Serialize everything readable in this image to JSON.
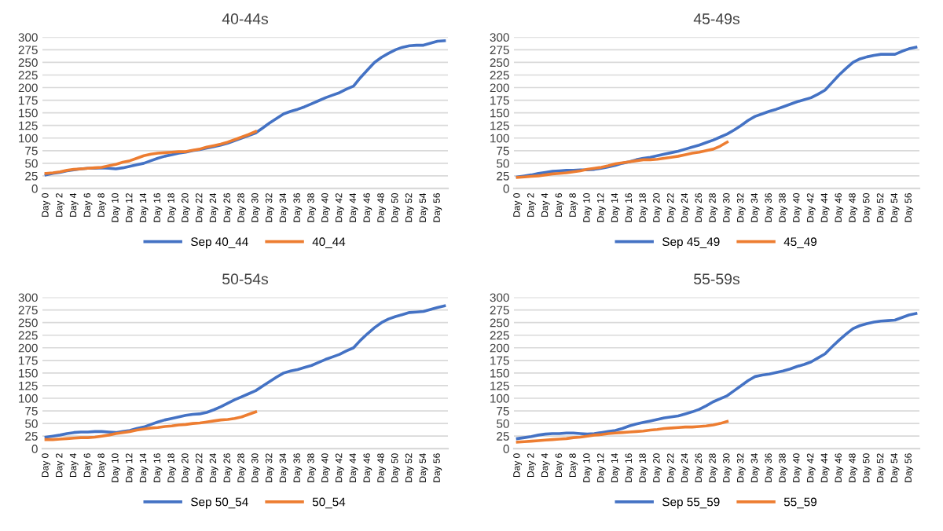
{
  "chart_data": [
    {
      "type": "line",
      "title": "40-44s",
      "categories": [
        "Day 0",
        null,
        "Day 2",
        null,
        "Day 4",
        null,
        "Day 6",
        null,
        "Day 8",
        null,
        "Day 10",
        null,
        "Day 12",
        null,
        "Day 14",
        null,
        "Day 16",
        null,
        "Day 18",
        null,
        "Day 20",
        null,
        "Day 22",
        null,
        "Day 24",
        null,
        "Day 26",
        null,
        "Day 28",
        null,
        "Day 30",
        null,
        "Day 32",
        null,
        "Day 34",
        null,
        "Day 36",
        null,
        "Day 38",
        null,
        "Day 40",
        null,
        "Day 42",
        null,
        "Day 44",
        null,
        "Day 46",
        null,
        "Day 48",
        null,
        "Day 50",
        null,
        "Day 52",
        null,
        "Day 54",
        null,
        "Day 56",
        null
      ],
      "series": [
        {
          "name": "Sep 40_44",
          "color": "#4472c4",
          "values": [
            27,
            30,
            32,
            35,
            37,
            39,
            40,
            40,
            41,
            40,
            39,
            41,
            44,
            47,
            50,
            55,
            60,
            64,
            67,
            70,
            72,
            75,
            77,
            80,
            83,
            86,
            90,
            95,
            100,
            105,
            110,
            120,
            130,
            139,
            148,
            153,
            157,
            162,
            168,
            174,
            180,
            185,
            190,
            197,
            203,
            220,
            235,
            250,
            260,
            268,
            275,
            280,
            283,
            284,
            284,
            288,
            292,
            293
          ]
        },
        {
          "name": "40_44",
          "color": "#ed7d31",
          "values": [
            30,
            31,
            33,
            36,
            38,
            39,
            40,
            41,
            42,
            45,
            48,
            52,
            55,
            60,
            65,
            68,
            70,
            71,
            72,
            73,
            73,
            76,
            78,
            82,
            85,
            88,
            92,
            97,
            102,
            107,
            113,
            null,
            null,
            null,
            null,
            null,
            null,
            null,
            null,
            null,
            null,
            null,
            null,
            null,
            null,
            null,
            null,
            null,
            null,
            null,
            null,
            null,
            null,
            null,
            null,
            null,
            null,
            null
          ]
        }
      ],
      "ylim": [
        0,
        300
      ],
      "yticks": [
        0,
        25,
        50,
        75,
        100,
        125,
        150,
        175,
        200,
        225,
        250,
        275,
        300
      ],
      "grid": "y",
      "legend": "bottom",
      "marker": "none",
      "line_style": "solid"
    },
    {
      "type": "line",
      "title": "45-49s",
      "categories": [
        "Day 0",
        null,
        "Day 2",
        null,
        "Day 4",
        null,
        "Day 6",
        null,
        "Day 8",
        null,
        "Day 10",
        null,
        "Day 12",
        null,
        "Day 14",
        null,
        "Day 16",
        null,
        "Day 18",
        null,
        "Day 20",
        null,
        "Day 22",
        null,
        "Day 24",
        null,
        "Day 26",
        null,
        "Day 28",
        null,
        "Day 30",
        null,
        "Day 32",
        null,
        "Day 34",
        null,
        "Day 36",
        null,
        "Day 38",
        null,
        "Day 40",
        null,
        "Day 42",
        null,
        "Day 44",
        null,
        "Day 46",
        null,
        "Day 48",
        null,
        "Day 50",
        null,
        "Day 52",
        null,
        "Day 54",
        null,
        "Day 56",
        null
      ],
      "series": [
        {
          "name": "Sep 45_49",
          "color": "#4472c4",
          "values": [
            23,
            25,
            27,
            30,
            32,
            34,
            35,
            36,
            36,
            37,
            37,
            38,
            40,
            43,
            46,
            50,
            53,
            57,
            60,
            62,
            65,
            68,
            71,
            74,
            78,
            82,
            86,
            91,
            96,
            102,
            108,
            116,
            125,
            135,
            143,
            148,
            153,
            157,
            162,
            167,
            172,
            176,
            180,
            187,
            195,
            210,
            225,
            238,
            250,
            257,
            261,
            264,
            266,
            266,
            266,
            272,
            277,
            280
          ]
        },
        {
          "name": "45_49",
          "color": "#ed7d31",
          "values": [
            22,
            23,
            24,
            25,
            27,
            29,
            30,
            31,
            33,
            35,
            38,
            40,
            42,
            45,
            49,
            51,
            53,
            55,
            57,
            57,
            58,
            60,
            62,
            64,
            67,
            70,
            72,
            75,
            78,
            84,
            92,
            null,
            null,
            null,
            null,
            null,
            null,
            null,
            null,
            null,
            null,
            null,
            null,
            null,
            null,
            null,
            null,
            null,
            null,
            null,
            null,
            null,
            null,
            null,
            null,
            null,
            null,
            null
          ]
        }
      ],
      "ylim": [
        0,
        300
      ],
      "yticks": [
        0,
        25,
        50,
        75,
        100,
        125,
        150,
        175,
        200,
        225,
        250,
        275,
        300
      ],
      "grid": "y",
      "legend": "bottom",
      "marker": "none",
      "line_style": "solid"
    },
    {
      "type": "line",
      "title": "50-54s",
      "categories": [
        "Day 0",
        null,
        "Day 2",
        null,
        "Day 4",
        null,
        "Day 6",
        null,
        "Day 8",
        null,
        "Day 10",
        null,
        "Day 12",
        null,
        "Day 14",
        null,
        "Day 16",
        null,
        "Day 18",
        null,
        "Day 20",
        null,
        "Day 22",
        null,
        "Day 24",
        null,
        "Day 26",
        null,
        "Day 28",
        null,
        "Day 30",
        null,
        "Day 32",
        null,
        "Day 34",
        null,
        "Day 36",
        null,
        "Day 38",
        null,
        "Day 40",
        null,
        "Day 42",
        null,
        "Day 44",
        null,
        "Day 46",
        null,
        "Day 48",
        null,
        "Day 50",
        null,
        "Day 52",
        null,
        "Day 54",
        null,
        "Day 56",
        null
      ],
      "series": [
        {
          "name": "Sep 50_54",
          "color": "#4472c4",
          "values": [
            23,
            25,
            27,
            30,
            32,
            33,
            33,
            34,
            34,
            33,
            32,
            34,
            36,
            40,
            43,
            48,
            53,
            57,
            60,
            63,
            66,
            68,
            69,
            72,
            77,
            83,
            90,
            97,
            103,
            109,
            115,
            124,
            133,
            142,
            150,
            154,
            157,
            161,
            165,
            171,
            177,
            182,
            187,
            194,
            200,
            215,
            228,
            240,
            250,
            257,
            262,
            266,
            270,
            271,
            272,
            276,
            280,
            283
          ]
        },
        {
          "name": "50_54",
          "color": "#ed7d31",
          "values": [
            18,
            18,
            19,
            20,
            21,
            22,
            22,
            23,
            25,
            27,
            30,
            32,
            34,
            37,
            39,
            41,
            42,
            44,
            45,
            47,
            48,
            50,
            51,
            53,
            55,
            57,
            58,
            60,
            63,
            68,
            73,
            null,
            null,
            null,
            null,
            null,
            null,
            null,
            null,
            null,
            null,
            null,
            null,
            null,
            null,
            null,
            null,
            null,
            null,
            null,
            null,
            null,
            null,
            null,
            null,
            null,
            null,
            null
          ]
        }
      ],
      "ylim": [
        0,
        300
      ],
      "yticks": [
        0,
        25,
        50,
        75,
        100,
        125,
        150,
        175,
        200,
        225,
        250,
        275,
        300
      ],
      "grid": "y",
      "legend": "bottom",
      "marker": "none",
      "line_style": "solid"
    },
    {
      "type": "line",
      "title": "55-59s",
      "categories": [
        "Day 0",
        null,
        "Day 2",
        null,
        "Day 4",
        null,
        "Day 6",
        null,
        "Day 8",
        null,
        "Day 10",
        null,
        "Day 12",
        null,
        "Day 14",
        null,
        "Day 16",
        null,
        "Day 18",
        null,
        "Day 20",
        null,
        "Day 22",
        null,
        "Day 24",
        null,
        "Day 26",
        null,
        "Day 28",
        null,
        "Day 30",
        null,
        "Day 32",
        null,
        "Day 34",
        null,
        "Day 36",
        null,
        "Day 38",
        null,
        "Day 40",
        null,
        "Day 42",
        null,
        "Day 44",
        null,
        "Day 46",
        null,
        "Day 48",
        null,
        "Day 50",
        null,
        "Day 52",
        null,
        "Day 54",
        null,
        "Day 56",
        null
      ],
      "series": [
        {
          "name": "Sep 55_59",
          "color": "#4472c4",
          "values": [
            20,
            22,
            24,
            27,
            29,
            30,
            30,
            31,
            31,
            30,
            29,
            30,
            32,
            34,
            36,
            40,
            45,
            49,
            52,
            55,
            58,
            61,
            63,
            65,
            69,
            73,
            78,
            85,
            93,
            99,
            105,
            115,
            125,
            135,
            143,
            146,
            148,
            151,
            154,
            158,
            163,
            167,
            172,
            180,
            188,
            202,
            215,
            227,
            238,
            244,
            248,
            251,
            253,
            254,
            255,
            260,
            265,
            268
          ]
        },
        {
          "name": "55_59",
          "color": "#ed7d31",
          "values": [
            13,
            14,
            15,
            16,
            17,
            18,
            19,
            20,
            22,
            23,
            25,
            27,
            28,
            30,
            31,
            32,
            33,
            34,
            35,
            37,
            38,
            40,
            41,
            42,
            43,
            43,
            44,
            45,
            47,
            50,
            54,
            null,
            null,
            null,
            null,
            null,
            null,
            null,
            null,
            null,
            null,
            null,
            null,
            null,
            null,
            null,
            null,
            null,
            null,
            null,
            null,
            null,
            null,
            null,
            null,
            null,
            null,
            null
          ]
        }
      ],
      "ylim": [
        0,
        300
      ],
      "yticks": [
        0,
        25,
        50,
        75,
        100,
        125,
        150,
        175,
        200,
        225,
        250,
        275,
        300
      ],
      "grid": "y",
      "legend": "bottom",
      "marker": "none",
      "line_style": "solid"
    }
  ]
}
